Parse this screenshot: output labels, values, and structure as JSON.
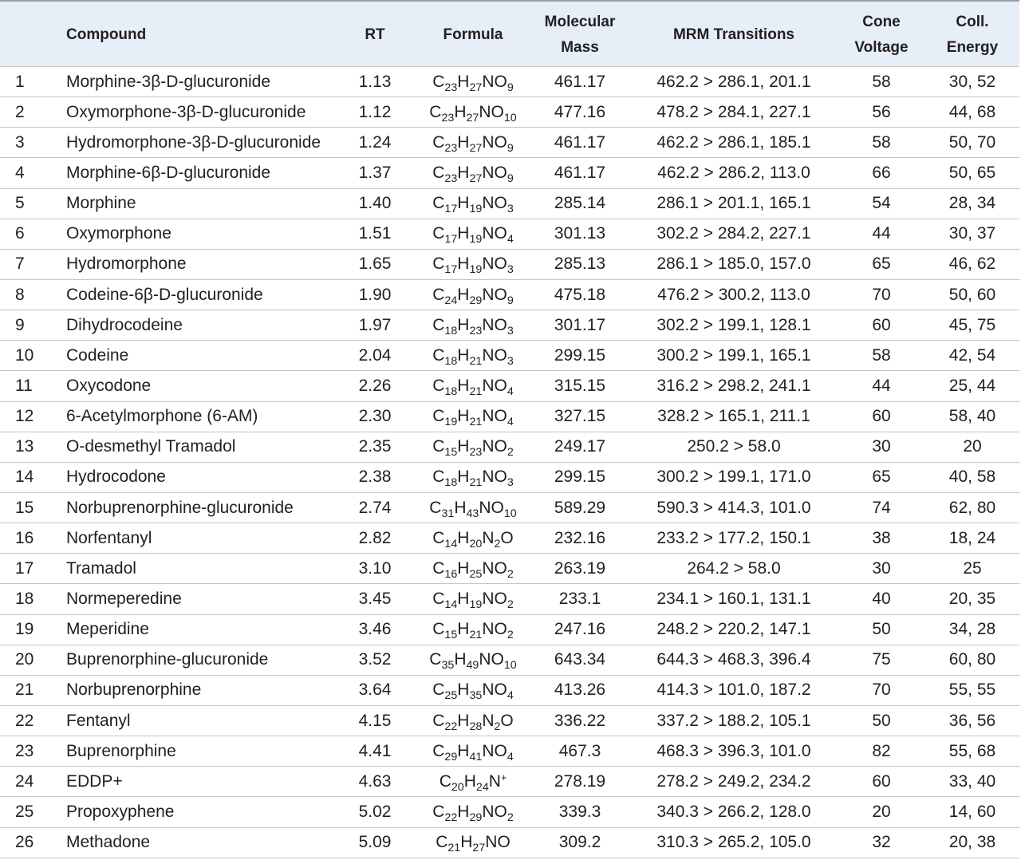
{
  "header": {
    "compound": "Compound",
    "rt": "RT",
    "formula": "Formula",
    "mass": [
      "Molecular",
      "Mass"
    ],
    "mrm": "MRM Transitions",
    "cone": [
      "Cone",
      "Voltage"
    ],
    "coll": [
      "Coll.",
      "Energy"
    ]
  },
  "rows": [
    {
      "no": "1",
      "compound": "Morphine-3β-D-glucuronide",
      "rt": "1.13",
      "formula": "C23H27NO9",
      "mass": "461.17",
      "mrm": "462.2 > 286.1, 201.1",
      "cone": "58",
      "coll": "30, 52"
    },
    {
      "no": "2",
      "compound": "Oxymorphone-3β-D-glucuronide",
      "rt": "1.12",
      "formula": "C23H27NO10",
      "mass": "477.16",
      "mrm": "478.2 > 284.1, 227.1",
      "cone": "56",
      "coll": "44, 68"
    },
    {
      "no": "3",
      "compound": "Hydromorphone-3β-D-glucuronide",
      "rt": "1.24",
      "formula": "C23H27NO9",
      "mass": "461.17",
      "mrm": "462.2 > 286.1, 185.1",
      "cone": "58",
      "coll": "50, 70"
    },
    {
      "no": "4",
      "compound": "Morphine-6β-D-glucuronide",
      "rt": "1.37",
      "formula": "C23H27NO9",
      "mass": "461.17",
      "mrm": "462.2 > 286.2, 113.0",
      "cone": "66",
      "coll": "50, 65"
    },
    {
      "no": "5",
      "compound": "Morphine",
      "rt": "1.40",
      "formula": "C17H19NO3",
      "mass": "285.14",
      "mrm": "286.1 > 201.1, 165.1",
      "cone": "54",
      "coll": "28, 34"
    },
    {
      "no": "6",
      "compound": "Oxymorphone",
      "rt": "1.51",
      "formula": "C17H19NO4",
      "mass": "301.13",
      "mrm": "302.2 > 284.2, 227.1",
      "cone": "44",
      "coll": "30, 37"
    },
    {
      "no": "7",
      "compound": "Hydromorphone",
      "rt": "1.65",
      "formula": "C17H19NO3",
      "mass": "285.13",
      "mrm": "286.1 > 185.0, 157.0",
      "cone": "65",
      "coll": "46, 62"
    },
    {
      "no": "8",
      "compound": "Codeine-6β-D-glucuronide",
      "rt": "1.90",
      "formula": "C24H29NO9",
      "mass": "475.18",
      "mrm": "476.2 > 300.2, 113.0",
      "cone": "70",
      "coll": "50, 60"
    },
    {
      "no": "9",
      "compound": "Dihydrocodeine",
      "rt": "1.97",
      "formula": "C18H23NO3",
      "mass": "301.17",
      "mrm": "302.2 > 199.1, 128.1",
      "cone": "60",
      "coll": "45, 75"
    },
    {
      "no": "10",
      "compound": "Codeine",
      "rt": "2.04",
      "formula": "C18H21NO3",
      "mass": "299.15",
      "mrm": "300.2 > 199.1, 165.1",
      "cone": "58",
      "coll": "42, 54"
    },
    {
      "no": "11",
      "compound": "Oxycodone",
      "rt": "2.26",
      "formula": "C18H21NO4",
      "mass": "315.15",
      "mrm": "316.2 > 298.2, 241.1",
      "cone": "44",
      "coll": "25, 44"
    },
    {
      "no": "12",
      "compound": "6-Acetylmorphone (6-AM)",
      "rt": "2.30",
      "formula": "C19H21NO4",
      "mass": "327.15",
      "mrm": "328.2 > 165.1, 211.1",
      "cone": "60",
      "coll": "58, 40"
    },
    {
      "no": "13",
      "compound": "O-desmethyl Tramadol",
      "rt": "2.35",
      "formula": "C15H23NO2",
      "mass": "249.17",
      "mrm": "250.2 > 58.0",
      "cone": "30",
      "coll": "20"
    },
    {
      "no": "14",
      "compound": "Hydrocodone",
      "rt": "2.38",
      "formula": "C18H21NO3",
      "mass": "299.15",
      "mrm": "300.2 > 199.1, 171.0",
      "cone": "65",
      "coll": "40, 58"
    },
    {
      "no": "15",
      "compound": "Norbuprenorphine-glucuronide",
      "rt": "2.74",
      "formula": "C31H43NO10",
      "mass": "589.29",
      "mrm": "590.3 > 414.3, 101.0",
      "cone": "74",
      "coll": "62, 80"
    },
    {
      "no": "16",
      "compound": "Norfentanyl",
      "rt": "2.82",
      "formula": "C14H20N2O",
      "mass": "232.16",
      "mrm": "233.2 > 177.2, 150.1",
      "cone": "38",
      "coll": "18, 24"
    },
    {
      "no": "17",
      "compound": "Tramadol",
      "rt": "3.10",
      "formula": "C16H25NO2",
      "mass": "263.19",
      "mrm": "264.2 > 58.0",
      "cone": "30",
      "coll": "25"
    },
    {
      "no": "18",
      "compound": "Normeperedine",
      "rt": "3.45",
      "formula": "C14H19NO2",
      "mass": "233.1",
      "mrm": "234.1 > 160.1, 131.1",
      "cone": "40",
      "coll": "20, 35"
    },
    {
      "no": "19",
      "compound": "Meperidine",
      "rt": "3.46",
      "formula": "C15H21NO2",
      "mass": "247.16",
      "mrm": "248.2 > 220.2, 147.1",
      "cone": "50",
      "coll": "34, 28"
    },
    {
      "no": "20",
      "compound": "Buprenorphine-glucuronide",
      "rt": "3.52",
      "formula": "C35H49NO10",
      "mass": "643.34",
      "mrm": "644.3 > 468.3, 396.4",
      "cone": "75",
      "coll": "60, 80"
    },
    {
      "no": "21",
      "compound": "Norbuprenorphine",
      "rt": "3.64",
      "formula": "C25H35NO4",
      "mass": "413.26",
      "mrm": "414.3 > 101.0, 187.2",
      "cone": "70",
      "coll": "55, 55"
    },
    {
      "no": "22",
      "compound": "Fentanyl",
      "rt": "4.15",
      "formula": "C22H28N2O",
      "mass": "336.22",
      "mrm": "337.2 > 188.2, 105.1",
      "cone": "50",
      "coll": "36, 56"
    },
    {
      "no": "23",
      "compound": "Buprenorphine",
      "rt": "4.41",
      "formula": "C29H41NO4",
      "mass": "467.3",
      "mrm": "468.3 > 396.3, 101.0",
      "cone": "82",
      "coll": "55, 68"
    },
    {
      "no": "24",
      "compound": "EDDP+",
      "rt": "4.63",
      "formula": "C20H24N+",
      "mass": "278.19",
      "mrm": "278.2 > 249.2, 234.2",
      "cone": "60",
      "coll": "33, 40"
    },
    {
      "no": "25",
      "compound": "Propoxyphene",
      "rt": "5.02",
      "formula": "C22H29NO2",
      "mass": "339.3",
      "mrm": "340.3 > 266.2, 128.0",
      "cone": "20",
      "coll": "14, 60"
    },
    {
      "no": "26",
      "compound": "Methadone",
      "rt": "5.09",
      "formula": "C21H27NO",
      "mass": "309.2",
      "mrm": "310.3 > 265.2, 105.0",
      "cone": "32",
      "coll": "20, 38"
    }
  ],
  "colors": {
    "header_background": "#e6eef8",
    "rule": "#c6c6c6",
    "top_rule": "#9d9d9d",
    "text": "#231f20"
  }
}
